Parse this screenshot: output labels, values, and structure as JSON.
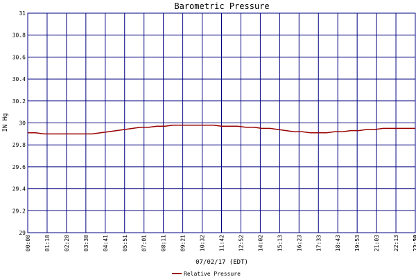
{
  "chart_data": {
    "type": "line",
    "title": "Barometric Pressure",
    "xlabel": "07/02/17 (EDT)",
    "ylabel": "IN Hg",
    "ylim": [
      29,
      31
    ],
    "yticks": [
      "29",
      "29.2",
      "29.4",
      "29.6",
      "29.8",
      "30",
      "30.2",
      "30.4",
      "30.6",
      "30.8",
      "31"
    ],
    "xticks": [
      "00:00",
      "01:10",
      "02:20",
      "03:30",
      "04:41",
      "05:51",
      "07:01",
      "08:11",
      "09:21",
      "10:32",
      "11:42",
      "12:52",
      "14:02",
      "15:13",
      "16:23",
      "17:33",
      "18:43",
      "19:53",
      "21:03",
      "22:13",
      "23:24",
      "23:59"
    ],
    "grid": true,
    "legend_position": "bottom-center",
    "series": [
      {
        "name": "Relative Pressure",
        "color": "#990000",
        "x": [
          0,
          0.5,
          1,
          1.5,
          2,
          2.5,
          3,
          3.5,
          4,
          4.5,
          5,
          5.5,
          6,
          6.5,
          7,
          7.5,
          8,
          8.5,
          9,
          9.5,
          10,
          10.5,
          11,
          11.5,
          12,
          12.5,
          13,
          13.5,
          14,
          14.5,
          15,
          15.5,
          16,
          16.5,
          17,
          17.5,
          18,
          18.5,
          19,
          19.5,
          20,
          20.5,
          21,
          21.5,
          22,
          22.5,
          23,
          23.5,
          24
        ],
        "values": [
          29.91,
          29.91,
          29.9,
          29.9,
          29.9,
          29.9,
          29.9,
          29.9,
          29.9,
          29.91,
          29.92,
          29.93,
          29.94,
          29.95,
          29.96,
          29.96,
          29.97,
          29.97,
          29.98,
          29.98,
          29.98,
          29.98,
          29.98,
          29.98,
          29.97,
          29.97,
          29.97,
          29.96,
          29.96,
          29.95,
          29.95,
          29.94,
          29.93,
          29.92,
          29.92,
          29.91,
          29.91,
          29.91,
          29.92,
          29.92,
          29.93,
          29.93,
          29.94,
          29.94,
          29.95,
          29.95,
          29.95,
          29.95,
          29.95
        ]
      }
    ]
  }
}
